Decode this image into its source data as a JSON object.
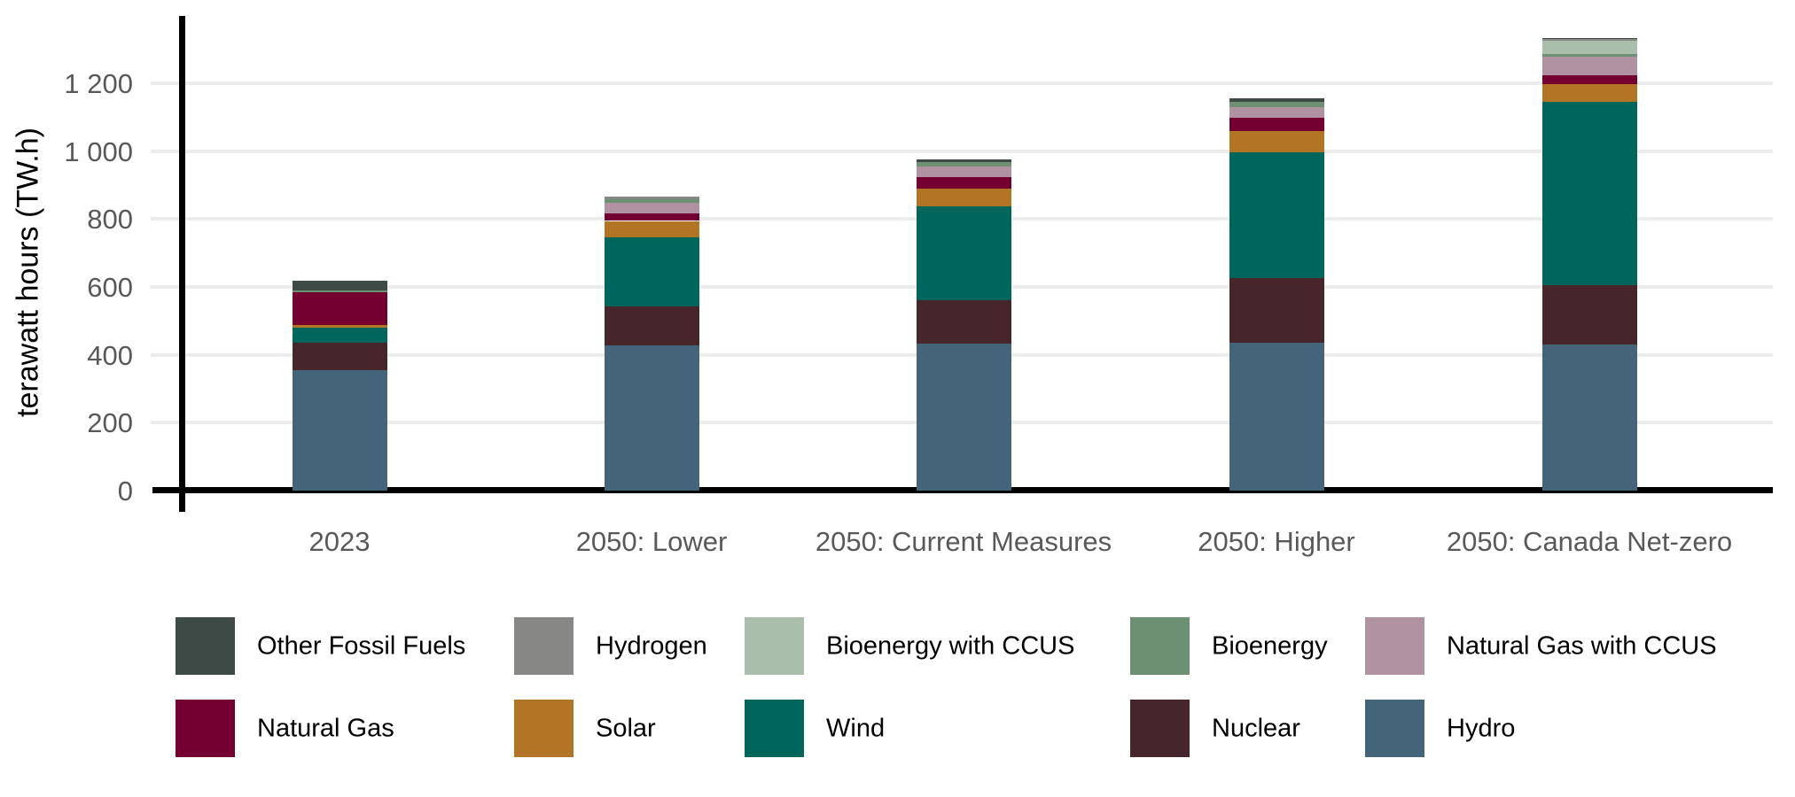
{
  "chart_data": {
    "type": "bar",
    "stacked": true,
    "title": "",
    "xlabel": "",
    "ylabel": "terawatt hours (TW.h)",
    "unit": "TW.h",
    "ylim": [
      0,
      1300
    ],
    "yticks": [
      0,
      200,
      400,
      600,
      800,
      1000,
      1200
    ],
    "ytick_labels": [
      "0",
      "200",
      "400",
      "600",
      "800",
      "1 000",
      "1 200"
    ],
    "grid": true,
    "legend_position": "bottom",
    "categories": [
      "2023",
      "2050: Lower",
      "2050: Current Measures",
      "2050: Higher",
      "2050: Canada Net-zero"
    ],
    "series": [
      {
        "name": "Other Fossil Fuels",
        "color": "#3d4a46",
        "values": [
          29,
          0,
          8,
          10,
          4
        ]
      },
      {
        "name": "Hydrogen",
        "color": "#878786",
        "values": [
          0,
          9,
          0,
          0,
          5
        ]
      },
      {
        "name": "Bioenergy with CCUS",
        "color": "#a9bfac",
        "values": [
          0,
          0,
          0,
          0,
          38
        ]
      },
      {
        "name": "Bioenergy",
        "color": "#6d8f72",
        "values": [
          6,
          10,
          13,
          16,
          9
        ]
      },
      {
        "name": "Natural Gas with CCUS",
        "color": "#b192a0",
        "values": [
          0,
          31,
          30,
          33,
          55
        ]
      },
      {
        "name": "Natural Gas",
        "color": "#740031",
        "values": [
          96,
          23,
          35,
          39,
          24
        ]
      },
      {
        "name": "Solar",
        "color": "#b27526",
        "values": [
          7,
          48,
          51,
          63,
          54
        ]
      },
      {
        "name": "Wind",
        "color": "#00655b",
        "values": [
          44,
          204,
          277,
          369,
          539
        ]
      },
      {
        "name": "Nuclear",
        "color": "#46262a",
        "values": [
          82,
          114,
          128,
          191,
          174
        ]
      },
      {
        "name": "Hydro",
        "color": "#44647a",
        "values": [
          354,
          428,
          433,
          435,
          431
        ]
      }
    ],
    "totals": [
      618,
      867,
      975,
      1156,
      1333
    ],
    "stack_order_bottom_to_top": [
      "Hydro",
      "Nuclear",
      "Wind",
      "Solar",
      "Natural Gas",
      "Natural Gas with CCUS",
      "Bioenergy",
      "Bioenergy with CCUS",
      "Hydrogen",
      "Other Fossil Fuels"
    ]
  },
  "axis": {
    "tick_label_color": "#595959",
    "axis_line_color": "#000000",
    "grid_color": "#ececec"
  },
  "legend": {
    "rows": [
      [
        "Other Fossil Fuels",
        "Hydrogen",
        "Bioenergy with CCUS",
        "Bioenergy",
        "Natural Gas with CCUS"
      ],
      [
        "Natural Gas",
        "Solar",
        "Wind",
        "Nuclear",
        "Hydro"
      ]
    ]
  }
}
